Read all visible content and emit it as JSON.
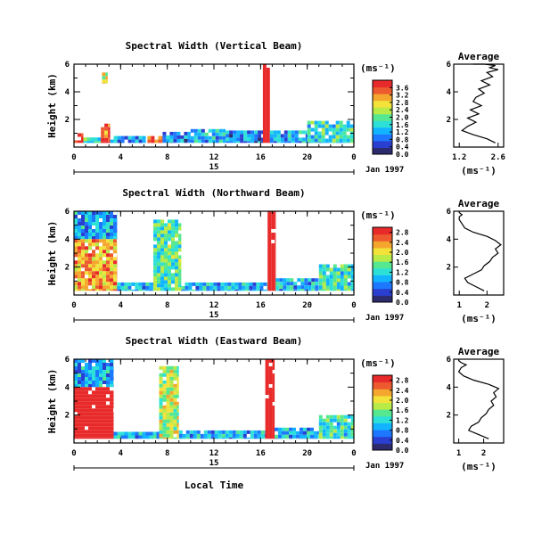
{
  "colors": {
    "scale": [
      "#2b2b6e",
      "#2a3fd0",
      "#1e78ff",
      "#12b4ff",
      "#2de0d8",
      "#55e890",
      "#b8ea48",
      "#f2e23a",
      "#f4a62e",
      "#ee5a30",
      "#e82a2a"
    ],
    "profile_line": "#000000"
  },
  "figure": {
    "xlabel": "Local Time",
    "date_label": "Jan 1997",
    "day_label": "15"
  },
  "chart_data": [
    {
      "type": "heatmap",
      "title": "Spectral Width (Vertical Beam)",
      "ylabel": "Height (km)",
      "xlabel": "",
      "xlim": [
        0,
        24
      ],
      "ylim": [
        0,
        6
      ],
      "x_ticks": [
        "0",
        "4",
        "8",
        "12",
        "16",
        "20",
        "0"
      ],
      "y_ticks": [
        "2",
        "4",
        "6"
      ],
      "colorbar": {
        "unit": "(ms⁻¹)",
        "ticks": [
          "0.0",
          "0.4",
          "0.8",
          "1.2",
          "1.6",
          "2.0",
          "2.4",
          "2.8",
          "3.2",
          "3.6"
        ],
        "range": [
          0,
          4.0
        ]
      },
      "regions": [
        {
          "x": [
            0.0,
            0.8
          ],
          "y": [
            0.3,
            1.0
          ],
          "v": 3.8
        },
        {
          "x": [
            0.8,
            2.3
          ],
          "y": [
            0.3,
            0.7
          ],
          "v": 1.7
        },
        {
          "x": [
            2.3,
            3.1
          ],
          "y": [
            0.3,
            1.7
          ],
          "v": 3.6
        },
        {
          "x": [
            2.4,
            2.9
          ],
          "y": [
            4.6,
            5.4
          ],
          "v": 2.6
        },
        {
          "x": [
            3.1,
            6.3
          ],
          "y": [
            0.3,
            0.8
          ],
          "v": 1.1
        },
        {
          "x": [
            6.3,
            7.6
          ],
          "y": [
            0.3,
            0.8
          ],
          "v": 3.7
        },
        {
          "x": [
            7.6,
            10.0
          ],
          "y": [
            0.3,
            1.1
          ],
          "v": 1.0
        },
        {
          "x": [
            10.0,
            13.0
          ],
          "y": [
            0.3,
            1.3
          ],
          "v": 1.3
        },
        {
          "x": [
            13.0,
            16.2
          ],
          "y": [
            0.3,
            1.2
          ],
          "v": 1.0
        },
        {
          "x": [
            16.2,
            16.8
          ],
          "y": [
            0.3,
            6.0
          ],
          "v": 3.9
        },
        {
          "x": [
            16.8,
            20.0
          ],
          "y": [
            0.3,
            1.2
          ],
          "v": 1.2
        },
        {
          "x": [
            20.0,
            24.0
          ],
          "y": [
            0.3,
            1.9
          ],
          "v": 1.7
        }
      ],
      "profile": {
        "title": "Average",
        "xlabel": "(ms⁻¹)",
        "x_ticks": [
          "1.2",
          "2.6"
        ],
        "y_ticks": [
          "2",
          "4",
          "6"
        ],
        "xlim": [
          1.0,
          2.8
        ],
        "ylim": [
          0,
          6
        ],
        "x": [
          2.5,
          2.2,
          1.7,
          1.3,
          1.5,
          1.8,
          1.5,
          1.9,
          1.6,
          2.0,
          1.7,
          1.8,
          2.1,
          1.9,
          2.3,
          2.0,
          2.4,
          2.2,
          2.6,
          2.3,
          2.5,
          2.1,
          1.7
        ],
        "y": [
          0.3,
          0.6,
          0.9,
          1.2,
          1.5,
          1.8,
          2.1,
          2.4,
          2.7,
          3.0,
          3.3,
          3.6,
          3.9,
          4.2,
          4.5,
          4.8,
          5.1,
          5.4,
          5.6,
          5.75,
          5.9,
          6.0,
          6.0
        ]
      }
    },
    {
      "type": "heatmap",
      "title": "Spectral Width (Northward Beam)",
      "ylabel": "Height (km)",
      "xlabel": "",
      "xlim": [
        0,
        24
      ],
      "ylim": [
        0,
        6
      ],
      "x_ticks": [
        "0",
        "4",
        "8",
        "12",
        "16",
        "20",
        "0"
      ],
      "y_ticks": [
        "2",
        "4",
        "6"
      ],
      "colorbar": {
        "unit": "(ms⁻¹)",
        "ticks": [
          "0.0",
          "0.4",
          "0.8",
          "1.2",
          "1.6",
          "2.0",
          "2.4",
          "2.8"
        ],
        "range": [
          0,
          3.0
        ]
      },
      "regions": [
        {
          "x": [
            0.0,
            3.7
          ],
          "y": [
            4.0,
            6.0
          ],
          "v": 0.9
        },
        {
          "x": [
            0.0,
            3.7
          ],
          "y": [
            0.3,
            4.0
          ],
          "v": 2.3
        },
        {
          "x": [
            3.7,
            6.8
          ],
          "y": [
            0.3,
            0.9
          ],
          "v": 1.0
        },
        {
          "x": [
            6.8,
            9.2
          ],
          "y": [
            0.3,
            5.4
          ],
          "v": 1.4
        },
        {
          "x": [
            9.2,
            16.6
          ],
          "y": [
            0.3,
            0.9
          ],
          "v": 1.0
        },
        {
          "x": [
            16.6,
            17.3
          ],
          "y": [
            0.3,
            6.0
          ],
          "v": 2.9
        },
        {
          "x": [
            17.3,
            21.0
          ],
          "y": [
            0.3,
            1.2
          ],
          "v": 1.0
        },
        {
          "x": [
            21.0,
            24.0
          ],
          "y": [
            0.3,
            2.2
          ],
          "v": 1.3
        }
      ],
      "profile": {
        "title": "Average",
        "xlabel": "(ms⁻¹)",
        "x_ticks": [
          "1",
          "2"
        ],
        "y_ticks": [
          "2",
          "4",
          "6"
        ],
        "xlim": [
          0.8,
          2.6
        ],
        "ylim": [
          0,
          6
        ],
        "x": [
          1.9,
          1.6,
          1.3,
          1.2,
          1.5,
          1.8,
          1.9,
          2.1,
          2.2,
          2.4,
          2.3,
          2.5,
          2.3,
          2.0,
          1.5,
          1.2,
          1.1,
          1.0,
          1.0,
          1.1,
          1.0,
          1.0
        ],
        "y": [
          0.3,
          0.6,
          0.9,
          1.2,
          1.5,
          1.8,
          2.1,
          2.4,
          2.7,
          3.0,
          3.3,
          3.6,
          3.9,
          4.2,
          4.5,
          4.8,
          5.1,
          5.4,
          5.6,
          5.75,
          5.9,
          6.0
        ]
      }
    },
    {
      "type": "heatmap",
      "title": "Spectral Width (Eastward Beam)",
      "ylabel": "Height (km)",
      "xlabel": "Local Time",
      "xlim": [
        0,
        24
      ],
      "ylim": [
        0,
        6
      ],
      "x_ticks": [
        "0",
        "4",
        "8",
        "12",
        "16",
        "20",
        "0"
      ],
      "y_ticks": [
        "2",
        "4",
        "6"
      ],
      "colorbar": {
        "unit": "(ms⁻¹)",
        "ticks": [
          "0.0",
          "0.4",
          "0.8",
          "1.2",
          "1.6",
          "2.0",
          "2.4",
          "2.8"
        ],
        "range": [
          0,
          3.0
        ]
      },
      "regions": [
        {
          "x": [
            0.0,
            3.4
          ],
          "y": [
            4.0,
            6.0
          ],
          "v": 0.9
        },
        {
          "x": [
            0.0,
            3.4
          ],
          "y": [
            0.3,
            4.0
          ],
          "v": 2.9
        },
        {
          "x": [
            3.4,
            7.3
          ],
          "y": [
            0.3,
            0.8
          ],
          "v": 1.0
        },
        {
          "x": [
            7.3,
            9.0
          ],
          "y": [
            0.3,
            5.5
          ],
          "v": 1.8
        },
        {
          "x": [
            9.0,
            16.4
          ],
          "y": [
            0.3,
            0.9
          ],
          "v": 1.0
        },
        {
          "x": [
            16.4,
            17.2
          ],
          "y": [
            0.3,
            6.0
          ],
          "v": 2.9
        },
        {
          "x": [
            17.2,
            21.0
          ],
          "y": [
            0.3,
            1.1
          ],
          "v": 1.0
        },
        {
          "x": [
            21.0,
            24.0
          ],
          "y": [
            0.3,
            2.0
          ],
          "v": 1.3
        }
      ],
      "profile": {
        "title": "Average",
        "xlabel": "(ms⁻¹)",
        "x_ticks": [
          "1",
          "2"
        ],
        "y_ticks": [
          "2",
          "4",
          "6"
        ],
        "xlim": [
          0.8,
          2.8
        ],
        "ylim": [
          0,
          6
        ],
        "x": [
          2.2,
          1.8,
          1.4,
          1.5,
          1.8,
          1.9,
          2.1,
          2.2,
          2.4,
          2.3,
          2.5,
          2.4,
          2.6,
          2.2,
          1.6,
          1.2,
          1.0,
          1.1,
          1.3,
          1.1,
          1.0,
          1.0
        ],
        "y": [
          0.3,
          0.6,
          0.9,
          1.2,
          1.5,
          1.8,
          2.1,
          2.4,
          2.7,
          3.0,
          3.3,
          3.6,
          3.9,
          4.2,
          4.5,
          4.8,
          5.1,
          5.4,
          5.6,
          5.75,
          5.9,
          6.0
        ]
      }
    }
  ]
}
